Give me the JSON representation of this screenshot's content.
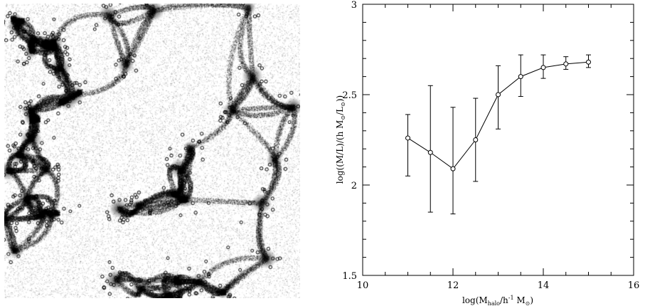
{
  "simulation_panel": {
    "style": "grayscale cosmic web density map with halo circles",
    "colors": {
      "background": "#ffffff",
      "filament": "#000000"
    }
  },
  "chart_data": {
    "type": "line",
    "title": "",
    "xlabel": {
      "prefix": "log(M",
      "subscript": "halo",
      "middle": "/h",
      "superscript": "-1",
      "middle2": " M",
      "subscript2": "⊙",
      "suffix": ")"
    },
    "ylabel": {
      "prefix": "log((M/L)/(h M",
      "subscript": "⊙",
      "middle": "/L",
      "subscript2": "⊙",
      "suffix": "))"
    },
    "xlim": [
      10,
      16
    ],
    "ylim": [
      1.5,
      3
    ],
    "xticks": [
      10,
      12,
      14,
      16
    ],
    "xtick_labels": [
      "10",
      "12",
      "14",
      "16"
    ],
    "yticks": [
      1.5,
      2,
      2.5,
      3
    ],
    "ytick_labels": [
      "1.5",
      "2",
      "2.5",
      "3"
    ],
    "grid": false,
    "marker": "open-circle",
    "series": [
      {
        "x": [
          11,
          11.5,
          12,
          12.5,
          13,
          13.5,
          14,
          14.5,
          15
        ],
        "y": [
          2.26,
          2.18,
          2.09,
          2.25,
          2.5,
          2.6,
          2.65,
          2.67,
          2.68
        ],
        "err_lower": [
          2.05,
          1.85,
          1.84,
          2.02,
          2.31,
          2.49,
          2.59,
          2.64,
          2.65
        ],
        "err_upper": [
          2.39,
          2.55,
          2.43,
          2.48,
          2.66,
          2.72,
          2.72,
          2.71,
          2.72
        ]
      }
    ]
  }
}
